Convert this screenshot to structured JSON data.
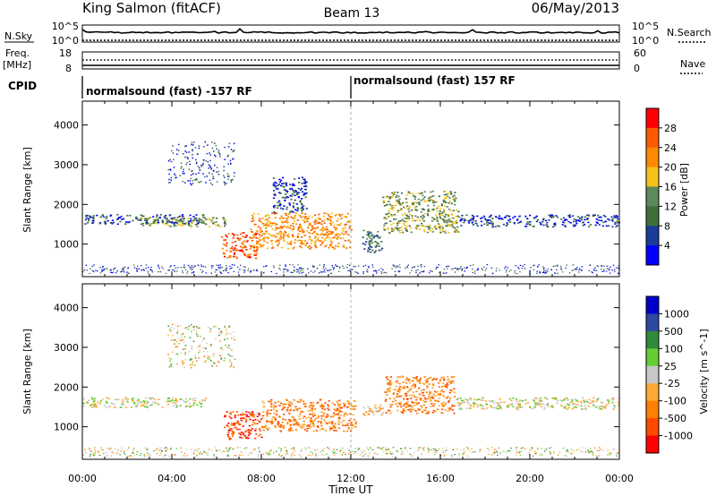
{
  "header": {
    "station": "King Salmon (fitACF)",
    "beam": "Beam 13",
    "date": "06/May/2013"
  },
  "top_panels": {
    "nsky_label": "N.Sky",
    "nsearch_label": "N.Search",
    "nsky_ticks": [
      "10^5",
      "10^0"
    ],
    "nsearch_ticks": [
      "10^5",
      "10^0"
    ],
    "freq_label": "Freq.",
    "freq_unit": "[MHz]",
    "freq_ticks": [
      "18",
      "8"
    ],
    "nave_label": "Nave",
    "nave_ticks": [
      "60",
      "0"
    ],
    "cpid_label": "CPID",
    "cpid_segments": [
      {
        "text": "normalsound (fast) -157 RF",
        "start_h": 0,
        "end_h": 12
      },
      {
        "text": "normalsound (fast) 157 RF",
        "start_h": 12,
        "end_h": 24
      }
    ]
  },
  "colors": {
    "power": [
      "#0000ff",
      "#1a3c9a",
      "#3f6e3a",
      "#5e8a5a",
      "#f5c21b",
      "#ff8a00",
      "#ff5a00",
      "#ff0000"
    ],
    "velocity": [
      "#ff0000",
      "#ff4a00",
      "#ff7f00",
      "#ffaa33",
      "#c8c8c8",
      "#66cc33",
      "#2f8a3a",
      "#2c4aa0",
      "#0000cc"
    ]
  },
  "chart_data": [
    {
      "type": "heatmap",
      "name": "Power",
      "xlabel": "",
      "ylabel": "Slant Range [km]",
      "xlim": [
        0,
        24
      ],
      "ylim": [
        180,
        4600
      ],
      "yticks": [
        "1000",
        "2000",
        "3000",
        "4000"
      ],
      "colorbar_label": "Power [dB]",
      "colorbar_ticks": [
        "4",
        "8",
        "12",
        "16",
        "20",
        "24",
        "28"
      ],
      "scatter_bands": [
        {
          "x": [
            0.0,
            5.5
          ],
          "y": [
            1520,
            1760
          ],
          "level": 1
        },
        {
          "x": [
            2.5,
            6.5
          ],
          "y": [
            1450,
            1700
          ],
          "level": 3
        },
        {
          "x": [
            6.2,
            7.8
          ],
          "y": [
            650,
            1300
          ],
          "level": 6
        },
        {
          "x": [
            7.5,
            12.0
          ],
          "y": [
            900,
            1800
          ],
          "level": 5
        },
        {
          "x": [
            8.5,
            10.0
          ],
          "y": [
            1800,
            2700
          ],
          "level": 1
        },
        {
          "x": [
            12.5,
            13.4
          ],
          "y": [
            800,
            1400
          ],
          "level": 2
        },
        {
          "x": [
            13.4,
            16.8
          ],
          "y": [
            1300,
            2350
          ],
          "level": 3
        },
        {
          "x": [
            16.8,
            24.0
          ],
          "y": [
            1450,
            1750
          ],
          "level": 1
        }
      ]
    },
    {
      "type": "heatmap",
      "name": "Velocity",
      "xlabel": "Time UT",
      "ylabel": "Slant Range [km]",
      "xlim": [
        0,
        24
      ],
      "ylim": [
        180,
        4600
      ],
      "xticks": [
        "00:00",
        "04:00",
        "08:00",
        "12:00",
        "16:00",
        "20:00",
        "00:00"
      ],
      "yticks": [
        "1000",
        "2000",
        "3000",
        "4000"
      ],
      "colorbar_label": "Velocity [m s^-1]",
      "colorbar_ticks": [
        "1000",
        "500",
        "100",
        "25",
        "-25",
        "-100",
        "-500",
        "-1000"
      ],
      "scatter_bands": [
        {
          "x": [
            0.0,
            5.5
          ],
          "y": [
            1500,
            1750
          ],
          "level": 4
        },
        {
          "x": [
            6.3,
            8.0
          ],
          "y": [
            700,
            1400
          ],
          "level": 1
        },
        {
          "x": [
            8.0,
            12.2
          ],
          "y": [
            900,
            1700
          ],
          "level": 2
        },
        {
          "x": [
            12.5,
            13.4
          ],
          "y": [
            1300,
            1600
          ],
          "level": 3
        },
        {
          "x": [
            13.5,
            16.6
          ],
          "y": [
            1350,
            2300
          ],
          "level": 2
        },
        {
          "x": [
            16.7,
            24.0
          ],
          "y": [
            1450,
            1750
          ],
          "level": 4
        }
      ]
    }
  ]
}
